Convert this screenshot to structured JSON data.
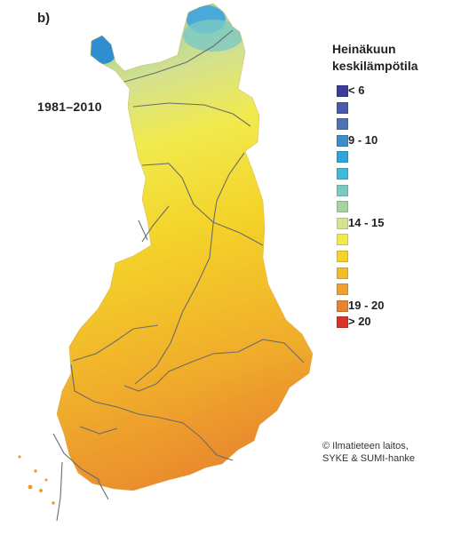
{
  "figure": {
    "panel_label": "b)",
    "period": "1981–2010",
    "legend_title_line1": "Heinäkuun",
    "legend_title_line2": "keskilämpötila",
    "credit_line1": "© Ilmatieteen laitos,",
    "credit_line2": "SYKE & SUMI-hanke"
  },
  "legend": {
    "items": [
      {
        "label": "< 6",
        "color": "#3b3b9a"
      },
      {
        "label": "",
        "color": "#4b5aa8"
      },
      {
        "label": "",
        "color": "#4a74b4"
      },
      {
        "label": "9 - 10",
        "color": "#3d8fc6"
      },
      {
        "label": "",
        "color": "#2ea6d8"
      },
      {
        "label": "",
        "color": "#3dbcd9"
      },
      {
        "label": "",
        "color": "#7cc9c4"
      },
      {
        "label": "",
        "color": "#a8d39e"
      },
      {
        "label": "14 - 15",
        "color": "#d6e28c"
      },
      {
        "label": "",
        "color": "#f1ea4e"
      },
      {
        "label": "",
        "color": "#f4d42a"
      },
      {
        "label": "",
        "color": "#f2bb2a"
      },
      {
        "label": "",
        "color": "#eea12c"
      },
      {
        "label": "19 - 20",
        "color": "#e8822e"
      },
      {
        "label": "> 20",
        "color": "#d9322a"
      }
    ]
  },
  "map_colors": {
    "arctic_blue": "#2e8fd0",
    "teal": "#7cc9c4",
    "pale_green": "#bcd99a",
    "light_yellow": "#e4e67a",
    "yellow": "#f3e03a",
    "gold": "#f4c728",
    "orange": "#eea12c",
    "dark_orange": "#e8822e",
    "border": "#666666"
  }
}
